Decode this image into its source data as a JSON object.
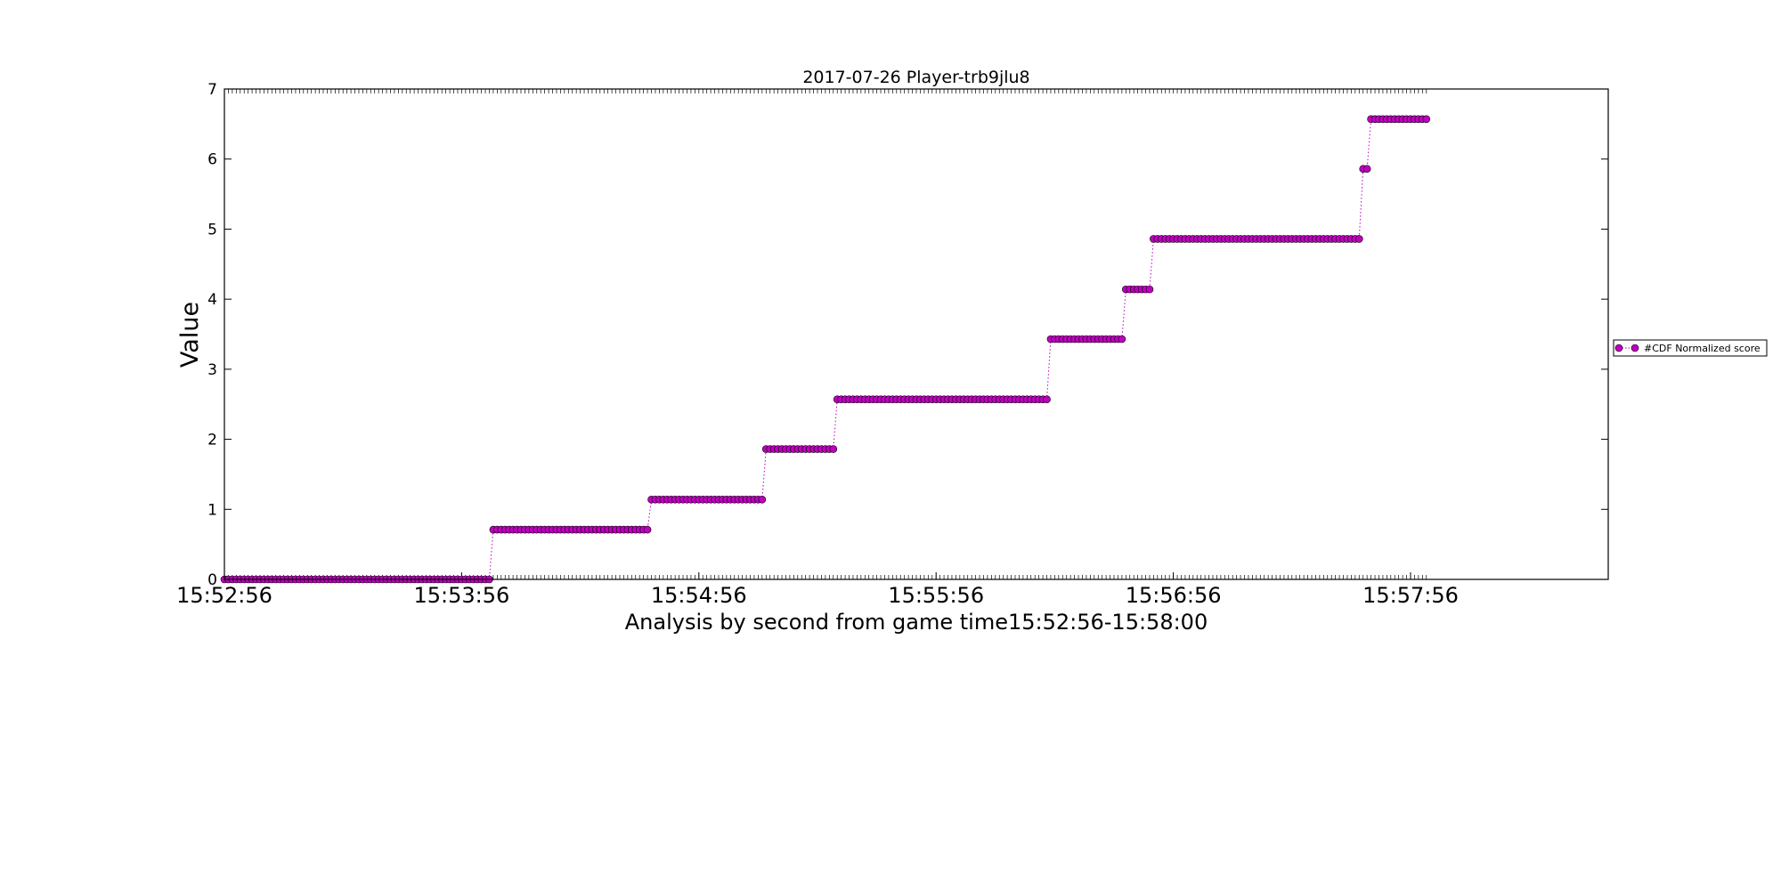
{
  "chart_data": {
    "type": "line",
    "title": "2017-07-26 Player-trb9jlu8",
    "xlabel": "Analysis by second from game time15:52:56-15:58:00",
    "ylabel": "Value",
    "ylim": [
      0,
      7
    ],
    "xlim_seconds_from_start": [
      0,
      350
    ],
    "yticks": [
      "0",
      "1",
      "2",
      "3",
      "4",
      "5",
      "6",
      "7"
    ],
    "xticks": [
      {
        "label": "15:52:56",
        "offset_seconds": 0
      },
      {
        "label": "15:53:56",
        "offset_seconds": 60
      },
      {
        "label": "15:54:56",
        "offset_seconds": 120
      },
      {
        "label": "15:55:56",
        "offset_seconds": 180
      },
      {
        "label": "15:56:56",
        "offset_seconds": 240
      },
      {
        "label": "15:57:56",
        "offset_seconds": 300
      }
    ],
    "legend": {
      "placement": "right",
      "label": "#CDF Normalized score"
    },
    "grid": false,
    "series": [
      {
        "name": "#CDF Normalized score",
        "color": "#bf00bf",
        "line_style": "dotted",
        "marker": "circle",
        "segments": [
          {
            "start_second": 0,
            "end_second": 67,
            "value": 0.0
          },
          {
            "start_second": 68,
            "end_second": 107,
            "value": 0.71
          },
          {
            "start_second": 108,
            "end_second": 136,
            "value": 1.14
          },
          {
            "start_second": 137,
            "end_second": 154,
            "value": 1.86
          },
          {
            "start_second": 155,
            "end_second": 208,
            "value": 2.57
          },
          {
            "start_second": 209,
            "end_second": 227,
            "value": 3.43
          },
          {
            "start_second": 228,
            "end_second": 234,
            "value": 4.14
          },
          {
            "start_second": 235,
            "end_second": 287,
            "value": 4.86
          },
          {
            "start_second": 288,
            "end_second": 289,
            "value": 5.86
          },
          {
            "start_second": 290,
            "end_second": 304,
            "value": 6.57
          }
        ]
      }
    ]
  }
}
